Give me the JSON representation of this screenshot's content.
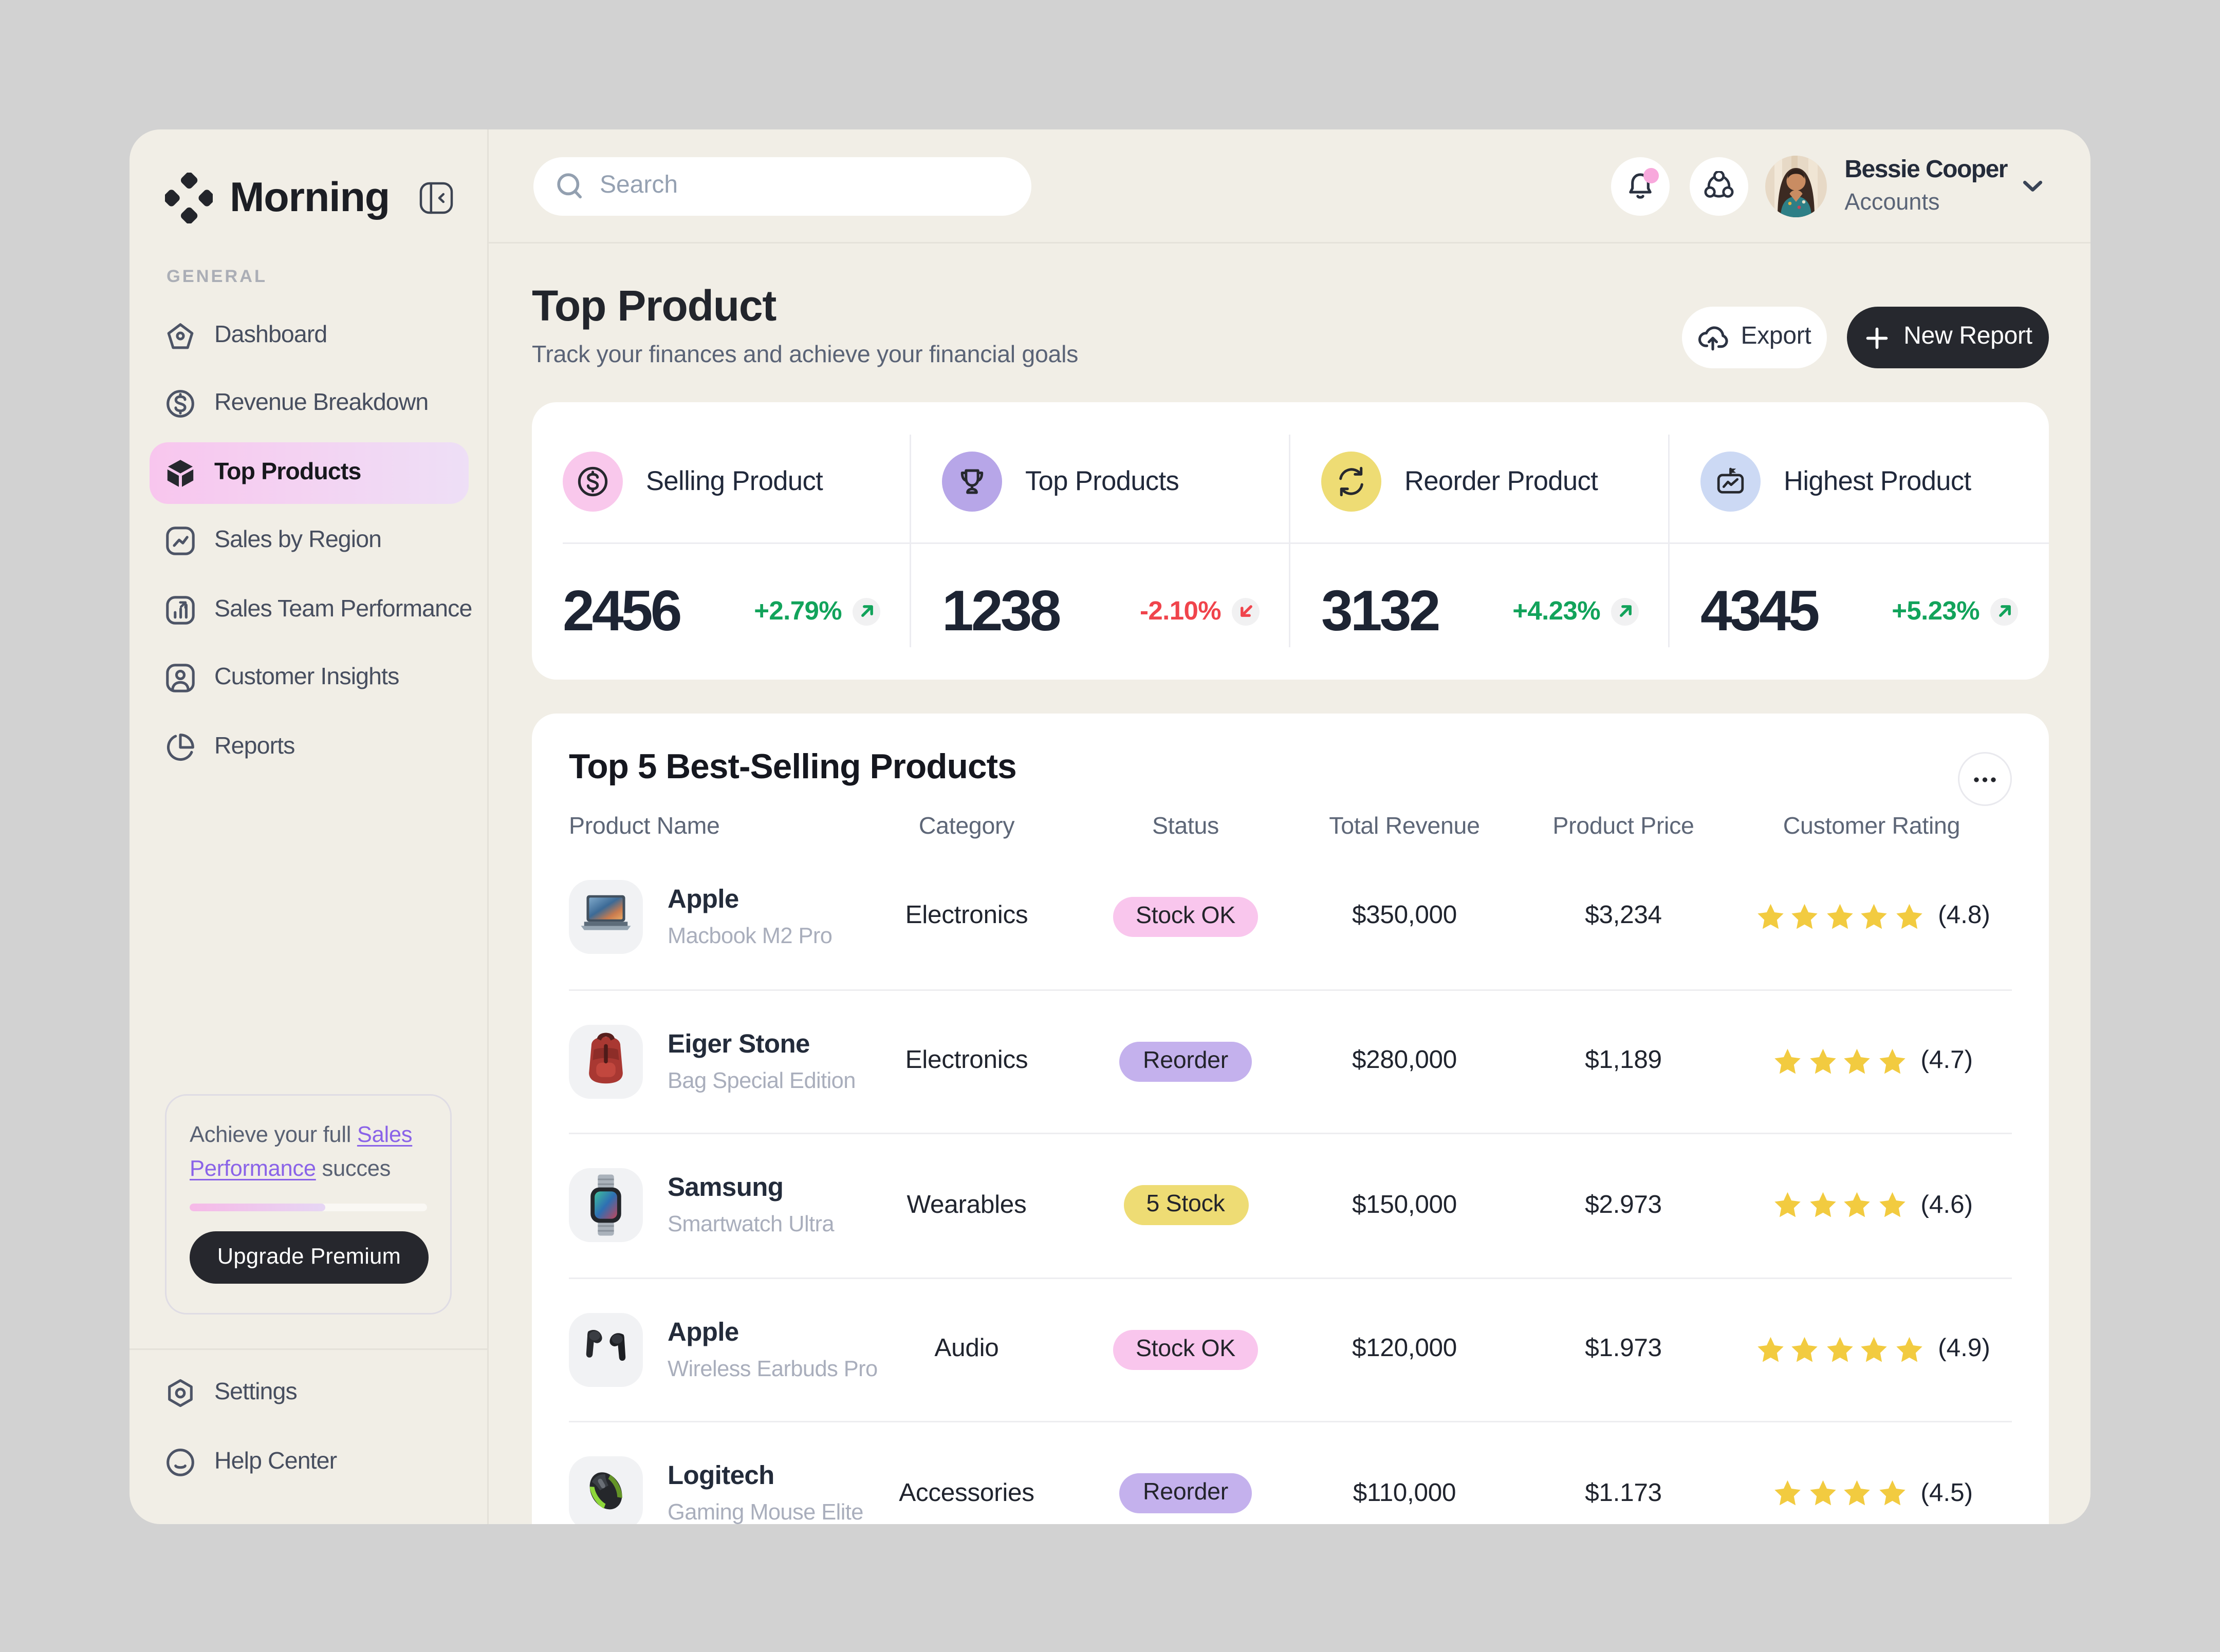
{
  "app": {
    "window_title": "Morning dashboard",
    "background": "#d2d2d2",
    "surface": "#f1eee6"
  },
  "sidebar": {
    "brand": "Morning",
    "section_label": "GENERAL",
    "items": [
      {
        "label": "Dashboard",
        "icon": "home-pentagon-icon",
        "active": false
      },
      {
        "label": "Revenue Breakdown",
        "icon": "dollar-circle-icon",
        "active": false
      },
      {
        "label": "Top Products",
        "icon": "cube-icon",
        "active": true
      },
      {
        "label": "Sales by Region",
        "icon": "trend-line-square-icon",
        "active": false
      },
      {
        "label": "Sales Team Performance",
        "icon": "bar-chart-square-icon",
        "active": false
      },
      {
        "label": "Customer Insights",
        "icon": "user-square-icon",
        "active": false
      },
      {
        "label": "Reports",
        "icon": "pie-chart-icon",
        "active": false
      }
    ],
    "promo": {
      "text_before": "Achieve your full ",
      "link_text": "Sales Performance",
      "text_after": " succes",
      "progress_percent": 57,
      "button_label": "Upgrade Premium"
    },
    "footer_items": [
      {
        "label": "Settings",
        "icon": "gear-hexagon-icon"
      },
      {
        "label": "Help Center",
        "icon": "smiley-circle-icon"
      }
    ]
  },
  "topbar": {
    "search_placeholder": "Search",
    "notification_badge": true,
    "user": {
      "name": "Bessie Cooper",
      "role": "Accounts"
    }
  },
  "page": {
    "title": "Top Product",
    "subtitle": "Track your finances and achieve your financial goals",
    "export_label": "Export",
    "new_report_label": "New Report"
  },
  "stats": [
    {
      "label": "Selling Product",
      "value": "2456",
      "delta": "+2.79%",
      "direction": "up",
      "icon": "dollar-circle-icon",
      "icon_bg": "#f9c8ec"
    },
    {
      "label": "Top Products",
      "value": "1238",
      "delta": "-2.10%",
      "direction": "down",
      "icon": "trophy-icon",
      "icon_bg": "#b7a6e8"
    },
    {
      "label": "Reorder Product",
      "value": "3132",
      "delta": "+4.23%",
      "direction": "up",
      "icon": "refresh-icon",
      "icon_bg": "#eedc74"
    },
    {
      "label": "Highest Product",
      "value": "4345",
      "delta": "+5.23%",
      "direction": "up",
      "icon": "presentation-icon",
      "icon_bg": "#ccd9f4"
    }
  ],
  "table": {
    "title": "Top 5 Best-Selling Products",
    "columns": [
      "Product Name",
      "Category",
      "Status",
      "Total Revenue",
      "Product Price",
      "Customer Rating"
    ],
    "rows": [
      {
        "name": "Apple",
        "model": "Macbook M2 Pro",
        "category": "Electronics",
        "status": {
          "label": "Stock OK",
          "variant": "pink"
        },
        "revenue": "$350,000",
        "price": "$3,234",
        "stars": 5,
        "rating": "(4.8)",
        "thumb": "macbook-image"
      },
      {
        "name": "Eiger Stone",
        "model": "Bag Special Edition",
        "category": "Electronics",
        "status": {
          "label": "Reorder",
          "variant": "purple"
        },
        "revenue": "$280,000",
        "price": "$1,189",
        "stars": 4,
        "rating": "(4.7)",
        "thumb": "backpack-image"
      },
      {
        "name": "Samsung",
        "model": "Smartwatch Ultra",
        "category": "Wearables",
        "status": {
          "label": "5 Stock",
          "variant": "yellow"
        },
        "revenue": "$150,000",
        "price": "$2.973",
        "stars": 4,
        "rating": "(4.6)",
        "thumb": "smartwatch-image"
      },
      {
        "name": "Apple",
        "model": "Wireless Earbuds Pro",
        "category": "Audio",
        "status": {
          "label": "Stock OK",
          "variant": "pink"
        },
        "revenue": "$120,000",
        "price": "$1.973",
        "stars": 5,
        "rating": "(4.9)",
        "thumb": "earbuds-image"
      },
      {
        "name": "Logitech",
        "model": "Gaming Mouse Elite",
        "category": "Accessories",
        "status": {
          "label": "Reorder",
          "variant": "purple"
        },
        "revenue": "$110,000",
        "price": "$1.173",
        "stars": 4,
        "rating": "(4.5)",
        "thumb": "mouse-image"
      }
    ]
  },
  "colors": {
    "active_nav_gradient": [
      "#f8c7ef",
      "#ecdcf7"
    ],
    "status_pink": "#f9c6ed",
    "status_purple": "#c4b1ed",
    "status_yellow": "#eedc74",
    "positive": "#12a35b",
    "negative": "#f0444c",
    "star": "#f2cb40",
    "notification_dot": "#f8a8dc"
  }
}
